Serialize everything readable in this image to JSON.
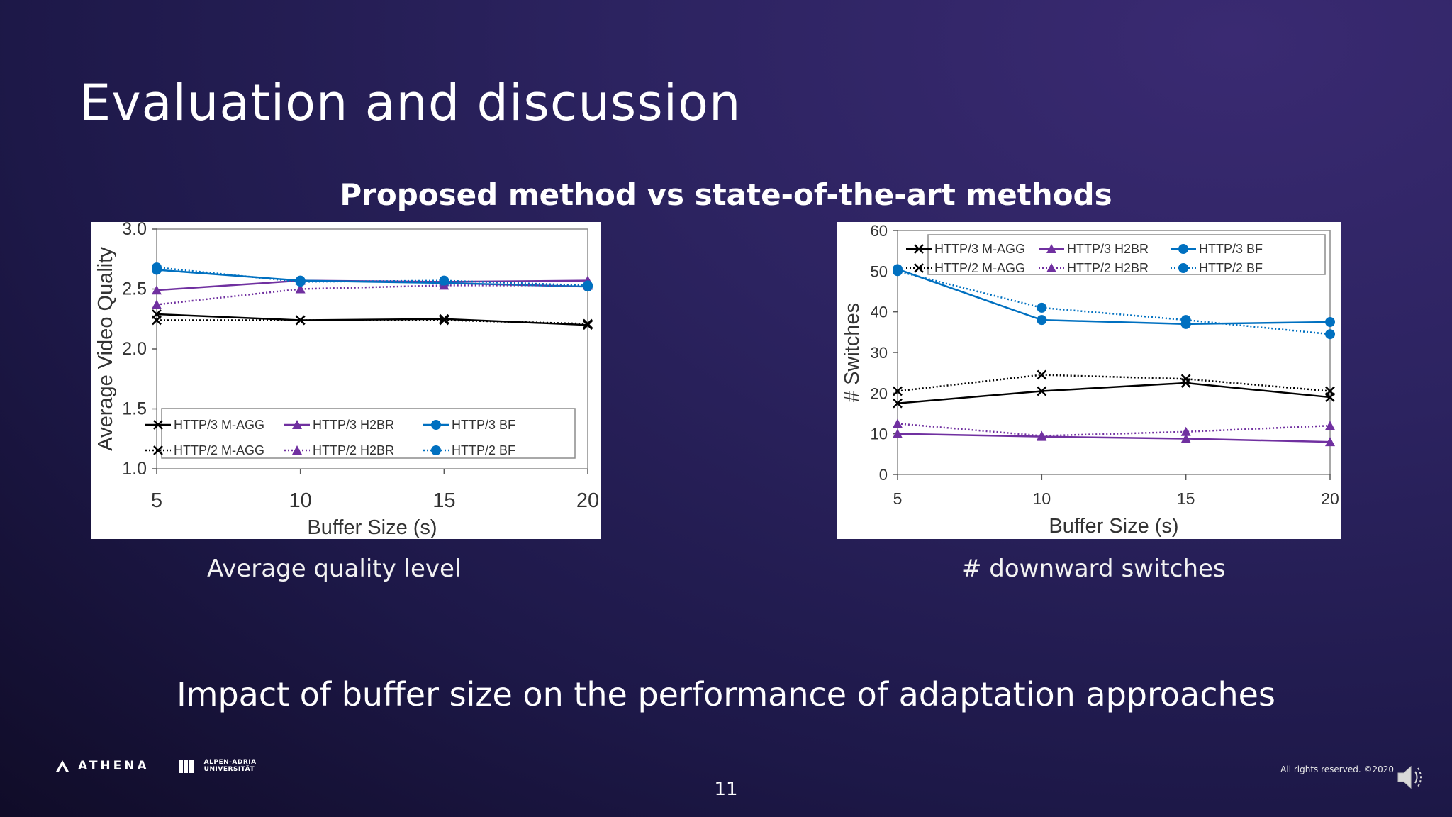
{
  "slide": {
    "title": "Evaluation and discussion",
    "subtitle": "Proposed method vs  state-of-the-art methods",
    "bottom_text": "Impact of buffer size on the performance of adaptation approaches",
    "page_number": "11",
    "rights": "All rights reserved. ©2020",
    "logo_left": "ATHENA",
    "logo_right_line1": "ALPEN-ADRIA",
    "logo_right_line2": "UNIVERSITÄT",
    "captions": [
      "Average quality level",
      "# downward switches"
    ]
  },
  "icons": {
    "logo_left": "athena-logo-icon",
    "logo_right": "university-logo-icon",
    "audio": "speaker-icon"
  },
  "colors": {
    "http3_magg": "#000000",
    "http3_h2br": "#7030a0",
    "http3_bf": "#0070c0"
  },
  "chart_data": [
    {
      "type": "line",
      "xlabel": "Buffer Size (s)",
      "ylabel": "Average Video Quality",
      "x": [
        5,
        10,
        15,
        20
      ],
      "xticks": [
        "5",
        "10",
        "15",
        "20"
      ],
      "yticks": [
        "1.0",
        "1.5",
        "2.0",
        "2.5",
        "3.0"
      ],
      "ylim": [
        1.0,
        3.0
      ],
      "legend_position": "bottom",
      "series": [
        {
          "name": "HTTP/3 M-AGG",
          "values": [
            2.29,
            2.24,
            2.25,
            2.2
          ],
          "color": "#000000",
          "marker": "x",
          "dash": "solid"
        },
        {
          "name": "HTTP/3 H2BR",
          "values": [
            2.49,
            2.57,
            2.56,
            2.57
          ],
          "color": "#7030a0",
          "marker": "triangle",
          "dash": "solid"
        },
        {
          "name": "HTTP/3 BF",
          "values": [
            2.66,
            2.57,
            2.55,
            2.52
          ],
          "color": "#0070c0",
          "marker": "circle",
          "dash": "solid"
        },
        {
          "name": "HTTP/2 M-AGG",
          "values": [
            2.24,
            2.24,
            2.24,
            2.21
          ],
          "color": "#000000",
          "marker": "x",
          "dash": "dotted"
        },
        {
          "name": "HTTP/2 H2BR",
          "values": [
            2.37,
            2.5,
            2.53,
            2.53
          ],
          "color": "#7030a0",
          "marker": "triangle",
          "dash": "dotted"
        },
        {
          "name": "HTTP/2 BF",
          "values": [
            2.68,
            2.56,
            2.57,
            2.53
          ],
          "color": "#0070c0",
          "marker": "circle",
          "dash": "dotted"
        }
      ]
    },
    {
      "type": "line",
      "xlabel": "Buffer Size (s)",
      "ylabel": "# Switches",
      "x": [
        5,
        10,
        15,
        20
      ],
      "xticks": [
        "5",
        "10",
        "15",
        "20"
      ],
      "yticks": [
        "0",
        "10",
        "20",
        "30",
        "40",
        "50",
        "60"
      ],
      "ylim": [
        0,
        60
      ],
      "legend_position": "top",
      "series": [
        {
          "name": "HTTP/3 M-AGG",
          "values": [
            17.5,
            20.5,
            22.5,
            19
          ],
          "color": "#000000",
          "marker": "x",
          "dash": "solid"
        },
        {
          "name": "HTTP/3 H2BR",
          "values": [
            10,
            9.3,
            8.8,
            8
          ],
          "color": "#7030a0",
          "marker": "triangle",
          "dash": "solid"
        },
        {
          "name": "HTTP/3 BF",
          "values": [
            50.5,
            38,
            37,
            37.5
          ],
          "color": "#0070c0",
          "marker": "circle",
          "dash": "solid"
        },
        {
          "name": "HTTP/2 M-AGG",
          "values": [
            20.5,
            24.5,
            23.5,
            20.5
          ],
          "color": "#000000",
          "marker": "x",
          "dash": "dotted"
        },
        {
          "name": "HTTP/2 H2BR",
          "values": [
            12.5,
            9.5,
            10.5,
            12
          ],
          "color": "#7030a0",
          "marker": "triangle",
          "dash": "dotted"
        },
        {
          "name": "HTTP/2 BF",
          "values": [
            50,
            41,
            38,
            34.5
          ],
          "color": "#0070c0",
          "marker": "circle",
          "dash": "dotted"
        }
      ]
    }
  ]
}
